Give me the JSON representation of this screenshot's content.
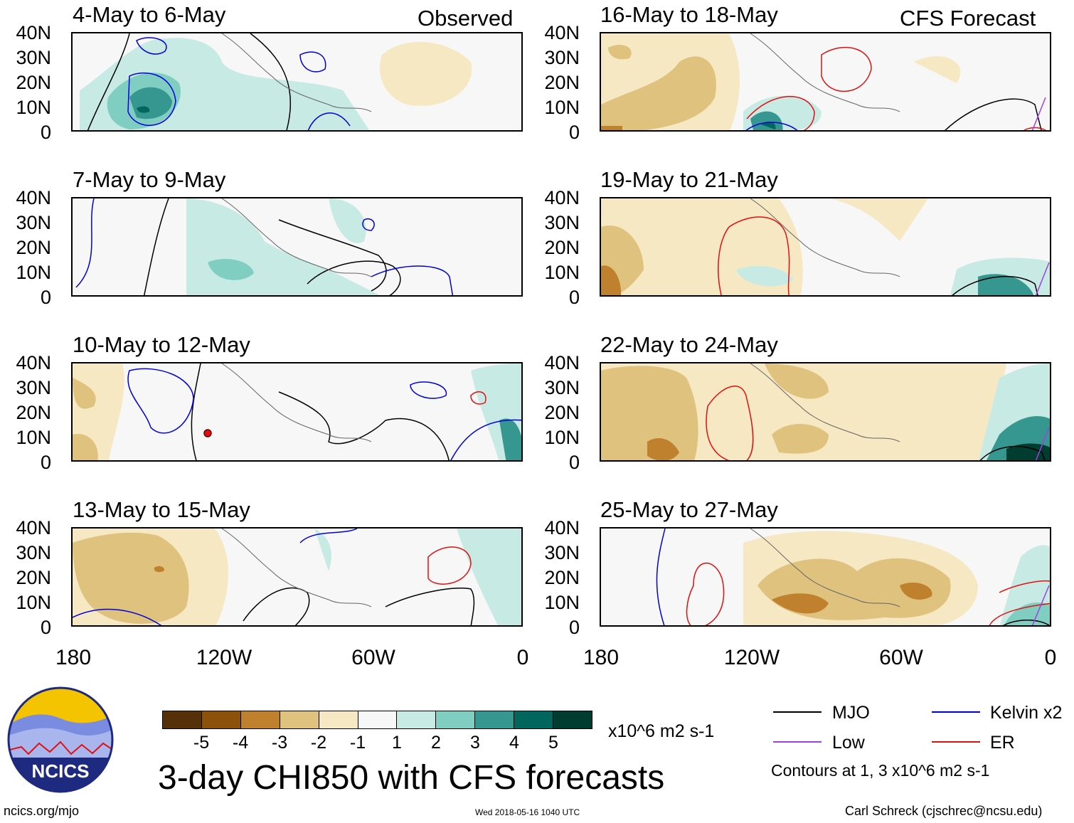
{
  "panels": [
    {
      "title": "4-May to 6-May",
      "corner": "Observed"
    },
    {
      "title": "7-May to 9-May",
      "corner": ""
    },
    {
      "title": "10-May to 12-May",
      "corner": ""
    },
    {
      "title": "13-May to 15-May",
      "corner": ""
    },
    {
      "title": "16-May to 18-May",
      "corner": "CFS Forecast"
    },
    {
      "title": "19-May to 21-May",
      "corner": ""
    },
    {
      "title": "22-May to 24-May",
      "corner": ""
    },
    {
      "title": "25-May to 27-May",
      "corner": ""
    }
  ],
  "lat_ticks": [
    "40N",
    "30N",
    "20N",
    "10N",
    "0"
  ],
  "lon_ticks": [
    "180",
    "120W",
    "60W",
    "0"
  ],
  "colorbar": {
    "ticks": [
      "-5",
      "-4",
      "-3",
      "-2",
      "-1",
      "1",
      "2",
      "3",
      "4",
      "5"
    ],
    "colors": [
      "#553009",
      "#8c510a",
      "#bf812d",
      "#dfc27d",
      "#f6e8c3",
      "#f7f7f7",
      "#c7eae5",
      "#80cdc1",
      "#35978f",
      "#01665e",
      "#003c30"
    ],
    "units": "x10^6 m2 s-1"
  },
  "title": "3-day CHI850 with CFS forecasts",
  "legend": {
    "mjo": {
      "label": "MJO",
      "color": "#000000"
    },
    "kelvin": {
      "label": "Kelvin x2",
      "color": "#0000dd"
    },
    "low": {
      "label": "Low",
      "color": "#a040e0"
    },
    "er": {
      "label": "ER",
      "color": "#e01010"
    },
    "note": "Contours at 1, 3 x10^6 m2 s-1"
  },
  "logo_text": "NCICS",
  "footer": {
    "left": "ncics.org/mjo",
    "center": "Wed 2018-05-16 1040 UTC",
    "right": "Carl Schreck (cjschrec@ncsu.edu)"
  }
}
